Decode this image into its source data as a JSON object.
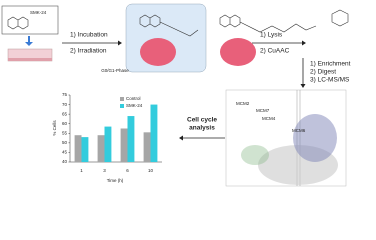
{
  "labels": {
    "compound": "SMK-24",
    "incubation": "1) Incubation",
    "irradiation": "2) Irradiation",
    "lysis": "1) Lysis",
    "cuaac": "2) CuAAC",
    "enrichment": "1) Enrichment",
    "digest": "2) Digest",
    "lcms": "3) LC-MS/MS",
    "cell_cycle": "Cell cycle",
    "analysis": "analysis",
    "mcm2": "MCM2",
    "mcm7": "MCM7",
    "mcm4": "MCM4",
    "mcm6": "MCM6"
  },
  "chart_data": {
    "type": "bar",
    "title": "G0/G1-Phase",
    "x_label": "Time (h)",
    "y_label": "% Cells",
    "categories": [
      "1",
      "3",
      "6",
      "10"
    ],
    "series": [
      {
        "name": "Control",
        "color": "#a6a6a6",
        "values": [
          54,
          54,
          57.5,
          55.5
        ]
      },
      {
        "name": "SMK-24",
        "color": "#33ccdd",
        "values": [
          53,
          58.5,
          64,
          70
        ]
      }
    ],
    "ylim": [
      40,
      75
    ],
    "yticks": [
      40,
      45,
      50,
      55,
      60,
      65,
      70,
      75
    ],
    "legend": "upper-left"
  }
}
